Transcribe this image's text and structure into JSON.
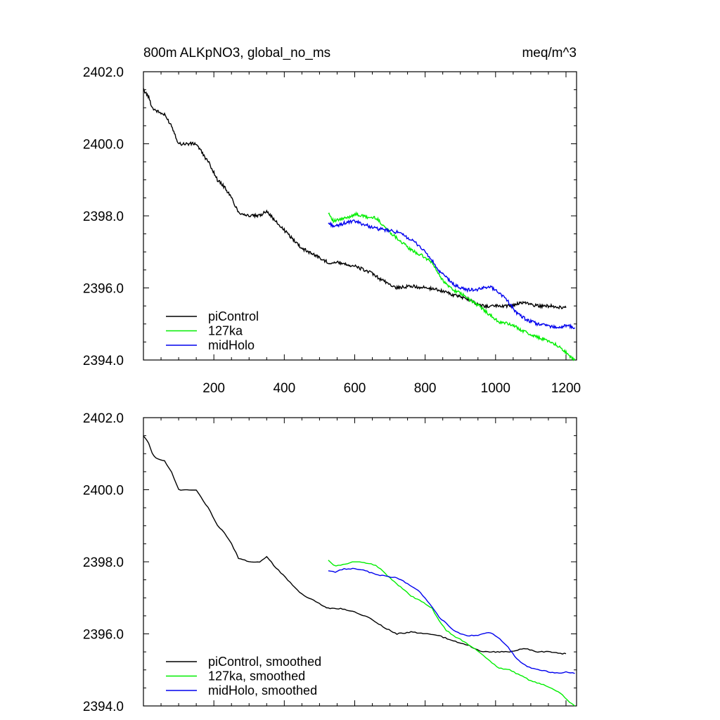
{
  "chart_data": [
    {
      "type": "line",
      "title_left": "800m ALKpNO3, global_no_ms",
      "title_right": "meq/m^3",
      "xlim": [
        0,
        1230
      ],
      "ylim": [
        2394.0,
        2402.0
      ],
      "xticks": [
        200,
        400,
        600,
        800,
        1000,
        1200
      ],
      "xtick_labels": [
        "200",
        "400",
        "600",
        "800",
        "1000",
        "1200"
      ],
      "yticks": [
        2394.0,
        2396.0,
        2398.0,
        2400.0,
        2402.0
      ],
      "ytick_labels": [
        "2394.0",
        "2396.0",
        "2398.0",
        "2400.0",
        "2402.0"
      ],
      "legend_position": "bottom-left",
      "series": [
        {
          "name": "piControl",
          "color": "#000000",
          "x": [
            0,
            15,
            25,
            40,
            60,
            80,
            100,
            130,
            150,
            170,
            190,
            210,
            230,
            250,
            270,
            300,
            330,
            350,
            370,
            390,
            410,
            430,
            450,
            470,
            490,
            505,
            515,
            530,
            560,
            600,
            640,
            680,
            720,
            760,
            800,
            840,
            880,
            920,
            960,
            1000,
            1040,
            1080,
            1120,
            1160,
            1190,
            1200
          ],
          "values": [
            2401.5,
            2401.3,
            2401.0,
            2400.9,
            2400.8,
            2400.5,
            2400.0,
            2400.0,
            2400.0,
            2399.7,
            2399.4,
            2399.0,
            2398.8,
            2398.5,
            2398.1,
            2398.0,
            2398.0,
            2398.15,
            2397.9,
            2397.7,
            2397.5,
            2397.3,
            2397.1,
            2397.0,
            2396.9,
            2396.8,
            2396.75,
            2396.7,
            2396.7,
            2396.6,
            2396.45,
            2396.2,
            2396.0,
            2396.05,
            2396.0,
            2395.95,
            2395.8,
            2395.7,
            2395.5,
            2395.5,
            2395.5,
            2395.6,
            2395.5,
            2395.5,
            2395.45,
            2395.45
          ]
        },
        {
          "name": "127ka",
          "color": "#00ee00",
          "x": [
            525,
            540,
            560,
            580,
            600,
            620,
            640,
            660,
            680,
            700,
            730,
            760,
            790,
            820,
            840,
            860,
            880,
            900,
            930,
            960,
            990,
            1010,
            1040,
            1070,
            1100,
            1130,
            1160,
            1190,
            1210,
            1225
          ],
          "values": [
            2398.1,
            2397.85,
            2397.9,
            2397.95,
            2398.05,
            2398.0,
            2397.95,
            2397.95,
            2397.75,
            2397.55,
            2397.3,
            2397.05,
            2396.9,
            2396.7,
            2396.35,
            2396.1,
            2395.95,
            2395.85,
            2395.65,
            2395.45,
            2395.2,
            2395.05,
            2395.0,
            2394.85,
            2394.7,
            2394.6,
            2394.5,
            2394.3,
            2394.1,
            2394.0
          ]
        },
        {
          "name": "midHolo",
          "color": "#0000ee",
          "x": [
            525,
            545,
            570,
            600,
            630,
            660,
            690,
            720,
            750,
            780,
            800,
            820,
            840,
            860,
            880,
            900,
            920,
            950,
            980,
            1000,
            1030,
            1060,
            1090,
            1120,
            1150,
            1180,
            1200,
            1225
          ],
          "values": [
            2397.8,
            2397.7,
            2397.8,
            2397.85,
            2397.75,
            2397.65,
            2397.6,
            2397.55,
            2397.4,
            2397.2,
            2397.0,
            2396.75,
            2396.45,
            2396.3,
            2396.1,
            2396.0,
            2395.95,
            2395.95,
            2396.05,
            2395.95,
            2395.7,
            2395.3,
            2395.1,
            2395.0,
            2394.95,
            2394.9,
            2394.95,
            2394.9
          ]
        }
      ]
    },
    {
      "type": "line",
      "title_left": "",
      "title_right": "",
      "xlim": [
        0,
        1230
      ],
      "ylim": [
        2394.0,
        2402.0
      ],
      "xticks": [
        200,
        400,
        600,
        800,
        1000,
        1200
      ],
      "yticks": [
        2394.0,
        2396.0,
        2398.0,
        2400.0,
        2402.0
      ],
      "ytick_labels": [
        "2394.0",
        "2396.0",
        "2398.0",
        "2400.0",
        "2402.0"
      ],
      "legend_position": "bottom-left",
      "series": [
        {
          "name": "piControl, smoothed",
          "color": "#000000",
          "x": [
            0,
            15,
            25,
            40,
            60,
            80,
            100,
            130,
            150,
            170,
            190,
            210,
            230,
            250,
            270,
            300,
            330,
            350,
            370,
            390,
            410,
            430,
            450,
            470,
            490,
            505,
            515,
            530,
            560,
            600,
            640,
            680,
            720,
            760,
            800,
            840,
            880,
            920,
            960,
            1000,
            1040,
            1080,
            1120,
            1160,
            1190,
            1200
          ],
          "values": [
            2401.5,
            2401.3,
            2401.0,
            2400.85,
            2400.8,
            2400.5,
            2400.0,
            2400.0,
            2400.0,
            2399.7,
            2399.4,
            2399.0,
            2398.8,
            2398.5,
            2398.1,
            2398.0,
            2398.0,
            2398.15,
            2397.9,
            2397.7,
            2397.5,
            2397.3,
            2397.1,
            2397.0,
            2396.9,
            2396.8,
            2396.75,
            2396.7,
            2396.7,
            2396.6,
            2396.45,
            2396.2,
            2396.0,
            2396.05,
            2396.0,
            2395.95,
            2395.8,
            2395.7,
            2395.5,
            2395.5,
            2395.5,
            2395.6,
            2395.5,
            2395.5,
            2395.45,
            2395.45
          ]
        },
        {
          "name": "127ka, smoothed",
          "color": "#00ee00",
          "x": [
            525,
            540,
            560,
            580,
            600,
            620,
            640,
            660,
            680,
            700,
            730,
            760,
            790,
            820,
            840,
            860,
            880,
            900,
            930,
            960,
            990,
            1010,
            1040,
            1070,
            1100,
            1130,
            1160,
            1190,
            1210,
            1225
          ],
          "values": [
            2398.05,
            2397.9,
            2397.9,
            2397.95,
            2398.0,
            2398.0,
            2397.95,
            2397.9,
            2397.75,
            2397.55,
            2397.3,
            2397.05,
            2396.9,
            2396.7,
            2396.35,
            2396.1,
            2395.95,
            2395.85,
            2395.65,
            2395.45,
            2395.2,
            2395.05,
            2395.0,
            2394.85,
            2394.7,
            2394.6,
            2394.5,
            2394.3,
            2394.1,
            2394.0
          ]
        },
        {
          "name": "midHolo, smoothed",
          "color": "#0000ee",
          "x": [
            525,
            545,
            570,
            600,
            630,
            660,
            690,
            720,
            750,
            780,
            800,
            820,
            840,
            860,
            880,
            900,
            920,
            950,
            980,
            1000,
            1030,
            1060,
            1090,
            1120,
            1150,
            1180,
            1200,
            1225
          ],
          "values": [
            2397.75,
            2397.72,
            2397.8,
            2397.82,
            2397.75,
            2397.65,
            2397.6,
            2397.55,
            2397.4,
            2397.2,
            2397.0,
            2396.75,
            2396.45,
            2396.3,
            2396.1,
            2396.0,
            2395.95,
            2395.95,
            2396.05,
            2395.95,
            2395.7,
            2395.3,
            2395.1,
            2395.0,
            2394.95,
            2394.9,
            2394.95,
            2394.9
          ]
        }
      ]
    }
  ]
}
